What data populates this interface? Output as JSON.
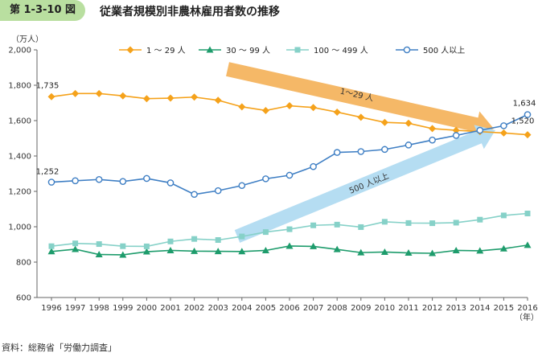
{
  "figure": {
    "label": "第 1-3-10 図",
    "title": "従業者規模別非農林雇用者数の推移",
    "source": "資料：総務省「労働力調査」"
  },
  "chart_data": {
    "type": "line",
    "title": "従業者規模別非農林雇用者数の推移",
    "ylabel": "（万人）",
    "xlabel": "（年）",
    "ylim": [
      600,
      2000
    ],
    "yticks": [
      600,
      800,
      1000,
      1200,
      1400,
      1600,
      1800,
      2000
    ],
    "ytick_labels": [
      "600",
      "800",
      "1,000",
      "1,200",
      "1,400",
      "1,600",
      "1,800",
      "2,000"
    ],
    "categories": [
      "1996",
      "1997",
      "1998",
      "1999",
      "2000",
      "2001",
      "2002",
      "2003",
      "2004",
      "2005",
      "2006",
      "2007",
      "2008",
      "2009",
      "2010",
      "2011",
      "2012",
      "2013",
      "2014",
      "2015",
      "2016"
    ],
    "series": [
      {
        "name": "1 ～ 29 人",
        "color": "#f5a21b",
        "marker": "diamond",
        "values": [
          1735,
          1753,
          1753,
          1740,
          1724,
          1727,
          1733,
          1715,
          1678,
          1657,
          1684,
          1674,
          1648,
          1619,
          1590,
          1585,
          1555,
          1545,
          1538,
          1530,
          1520
        ]
      },
      {
        "name": "30 ～ 99 人",
        "color": "#1e9c6c",
        "marker": "triangle",
        "values": [
          860,
          873,
          843,
          841,
          859,
          866,
          862,
          861,
          860,
          866,
          891,
          889,
          872,
          854,
          857,
          852,
          850,
          866,
          864,
          876,
          896
        ]
      },
      {
        "name": "100 ～ 499 人",
        "color": "#86d1c8",
        "marker": "square",
        "values": [
          890,
          906,
          902,
          890,
          889,
          917,
          931,
          925,
          945,
          970,
          986,
          1008,
          1012,
          998,
          1028,
          1021,
          1020,
          1023,
          1040,
          1064,
          1075
        ]
      },
      {
        "name": "500 人以上",
        "color": "#3f7fc4",
        "marker": "circle",
        "values": [
          1252,
          1260,
          1267,
          1256,
          1273,
          1248,
          1183,
          1204,
          1233,
          1271,
          1291,
          1340,
          1420,
          1425,
          1437,
          1462,
          1490,
          1516,
          1545,
          1571,
          1634
        ]
      }
    ],
    "data_labels": [
      {
        "series": 0,
        "index": 0,
        "text": "1,735",
        "position": "above"
      },
      {
        "series": 3,
        "index": 0,
        "text": "1,252",
        "position": "above"
      },
      {
        "series": 3,
        "index": 20,
        "text": "1,634",
        "position": "above"
      },
      {
        "series": 0,
        "index": 20,
        "text": "1,520",
        "position": "above"
      }
    ],
    "annotations": [
      {
        "text": "1～29 人",
        "kind": "arrow",
        "direction": "down",
        "color": "#f5b867"
      },
      {
        "text": "500 人以上",
        "kind": "arrow",
        "direction": "up",
        "color": "#b5ddf2"
      }
    ],
    "legend_position": "top"
  }
}
